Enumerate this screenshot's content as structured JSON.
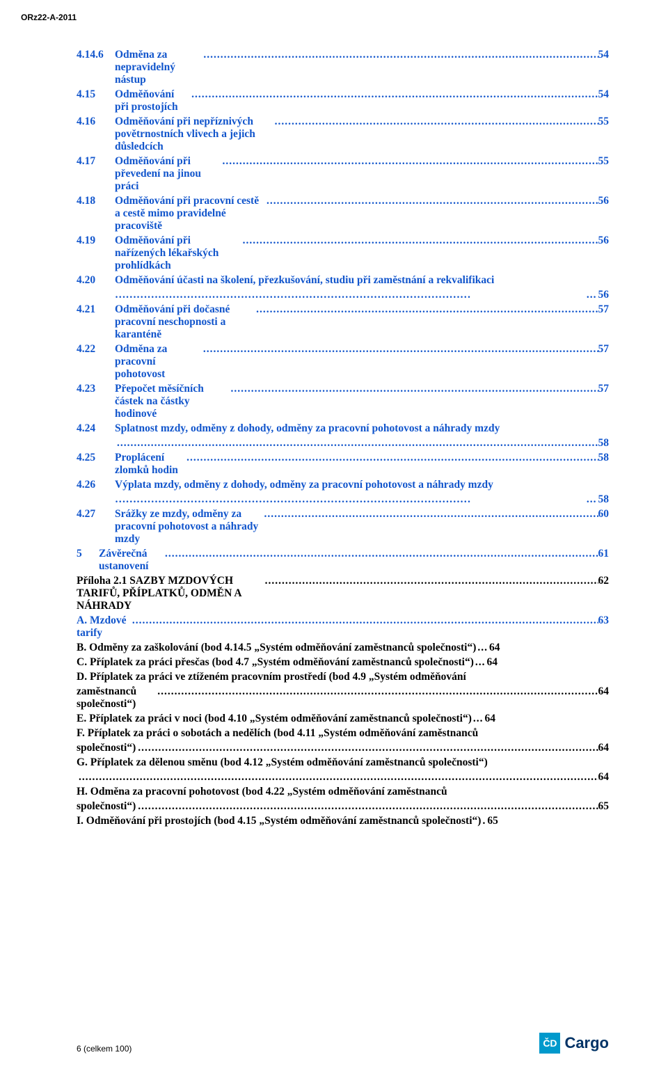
{
  "doc_id": "ORz22-A-2011",
  "colors": {
    "link_blue": "#1155cc",
    "text_black": "#000000",
    "logo_cyan": "#0099cc",
    "logo_navy": "#003366",
    "bg": "#ffffff"
  },
  "typography": {
    "body_family": "Times New Roman",
    "body_size_pt": 12,
    "body_weight": "bold",
    "header_family": "Arial",
    "header_size_pt": 9
  },
  "toc": {
    "entries": [
      {
        "num": "4.14.6",
        "text": "Odměna za nepravidelný nástup",
        "page": "54",
        "color": "blue",
        "indent": "num"
      },
      {
        "num": "4.15",
        "text": "Odměňování při prostojích",
        "page": "54",
        "color": "blue",
        "indent": "num"
      },
      {
        "num": "4.16",
        "text": "Odměňování při nepříznivých povětrnostních vlivech a jejich důsledcích",
        "page": "55",
        "color": "blue",
        "indent": "num"
      },
      {
        "num": "4.17",
        "text": "Odměňování při převedení na jinou práci",
        "page": "55",
        "color": "blue",
        "indent": "num"
      },
      {
        "num": "4.18",
        "text": "Odměňování při pracovní cestě a cestě mimo pravidelné pracoviště",
        "page": "56",
        "color": "blue",
        "indent": "num"
      },
      {
        "num": "4.19",
        "text": "Odměňování při nařízených lékařských prohlídkách",
        "page": "56",
        "color": "blue",
        "indent": "num"
      },
      {
        "num": "4.20",
        "text": "Odměňování účasti na školení, přezkušování, studiu při zaměstnání a rekvalifikaci",
        "page": "56",
        "color": "blue",
        "indent": "num",
        "cont_prefix": "………………………………………………………………………………………",
        "cont_leader": "..."
      },
      {
        "num": "4.21",
        "text": "Odměňování při dočasné pracovní neschopnosti a karanténě",
        "page": "57",
        "color": "blue",
        "indent": "num"
      },
      {
        "num": "4.22",
        "text": "Odměna za pracovní pohotovost",
        "page": "57",
        "color": "blue",
        "indent": "num"
      },
      {
        "num": "4.23",
        "text": "Přepočet měsíčních částek na částky hodinové",
        "page": "57",
        "color": "blue",
        "indent": "num"
      },
      {
        "num": "4.24",
        "text": "Splatnost mzdy, odměny z dohody, odměny za pracovní pohotovost a náhrady mzdy",
        "page": "58",
        "color": "blue",
        "indent": "num",
        "cont_prefix": "",
        "cont_leader": "dots"
      },
      {
        "num": "4.25",
        "text": "Proplácení zlomků hodin",
        "page": "58",
        "color": "blue",
        "indent": "num"
      },
      {
        "num": "4.26",
        "text": "Výplata mzdy, odměny z dohody, odměny za pracovní pohotovost a náhrady mzdy",
        "page": "58",
        "color": "blue",
        "indent": "num",
        "cont_prefix": "………………………………………………………………………………………",
        "cont_leader": "..."
      },
      {
        "num": "4.27",
        "text": "Srážky ze mzdy, odměny za pracovní pohotovost a náhrady mzdy",
        "page": "60",
        "color": "blue",
        "indent": "num"
      },
      {
        "num": "5",
        "text": "Závěrečná ustanovení",
        "page": "61",
        "color": "blue",
        "indent": "single"
      },
      {
        "num": "",
        "text": "Příloha 2.1 SAZBY MZDOVÝCH TARIFŮ, PŘÍPLATKŮ, ODMĚN A NÁHRADY",
        "page": "62",
        "color": "black",
        "indent": "none"
      },
      {
        "num": "",
        "text": "A. Mzdové tarify",
        "page": "63",
        "color": "blue",
        "indent": "none"
      },
      {
        "num": "",
        "text": "B. Odměny za zaškolování (bod 4.14.5 „Systém odměňování zaměstnanců společnosti“)",
        "page": "64",
        "color": "black",
        "indent": "none",
        "wrap": true
      },
      {
        "num": "",
        "text": "C. Příplatek za práci přesčas (bod 4.7 „Systém odměňování zaměstnanců společnosti“)",
        "page": "64",
        "color": "black",
        "indent": "none",
        "wrap": true
      },
      {
        "num": "",
        "text": "D. Příplatek za práci ve ztíženém pracovním prostředí (bod 4.9 „Systém odměňování",
        "text2": "zaměstnanců společnosti“)",
        "page": "64",
        "color": "black",
        "indent": "none",
        "multi": true
      },
      {
        "num": "",
        "text": "E. Příplatek za práci v noci (bod 4.10 „Systém odměňování zaměstnanců společnosti“)",
        "page": "64",
        "color": "black",
        "indent": "none",
        "wrap": true
      },
      {
        "num": "",
        "text": "F. Příplatek za práci o sobotách a nedělích (bod 4.11 „Systém odměňování zaměstnanců",
        "text2": "společnosti“)",
        "page": "64",
        "color": "black",
        "indent": "none",
        "multi": true
      },
      {
        "num": "",
        "text": "G. Příplatek za dělenou směnu (bod 4.12 „Systém odměňování zaměstnanců společnosti“)",
        "text2": "",
        "page": "64",
        "color": "black",
        "indent": "none",
        "multi": true
      },
      {
        "num": "",
        "text": "H. Odměna za pracovní pohotovost (bod 4.22 „Systém odměňování zaměstnanců",
        "text2": "společnosti“)",
        "page": "65",
        "color": "black",
        "indent": "none",
        "multi": true
      },
      {
        "num": "",
        "text": "I. Odměňování při prostojích (bod 4.15 „Systém odměňování zaměstnanců společnosti“)",
        "page": "65",
        "color": "black",
        "indent": "none",
        "tight": true
      }
    ]
  },
  "footer": {
    "page_text": "6 (celkem 100)",
    "logo_square": "ČD",
    "logo_text": "Cargo"
  }
}
